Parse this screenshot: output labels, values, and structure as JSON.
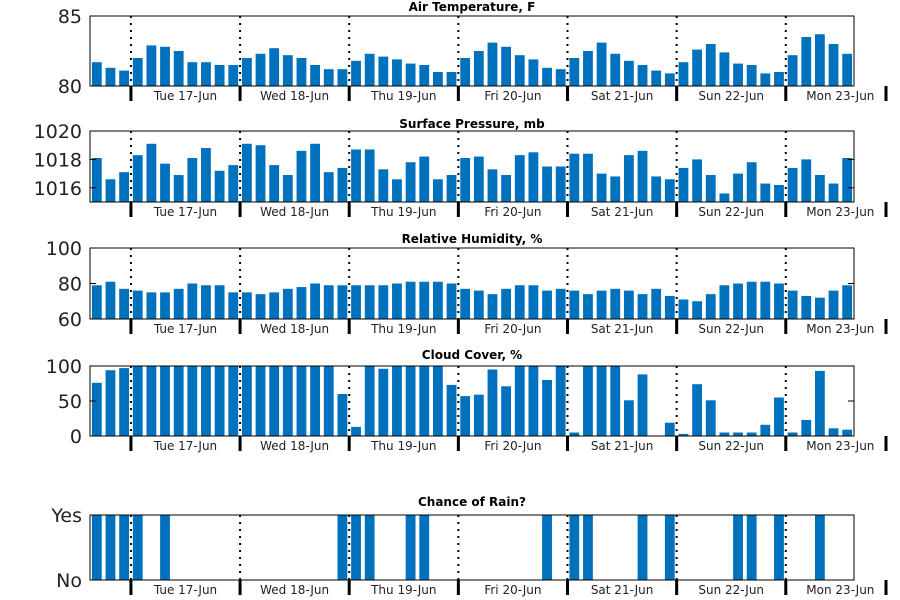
{
  "chart_data": [
    {
      "type": "bar",
      "title": "Air Temperature, F",
      "yticks": [
        "80",
        "85"
      ],
      "ylim": [
        80,
        85
      ],
      "color": "#0072BD",
      "day_labels": [
        "Tue 17-Jun",
        "Wed 18-Jun",
        "Thu 19-Jun",
        "Fri 20-Jun",
        "Sat 21-Jun",
        "Sun 22-Jun",
        "Mon 23-Jun"
      ],
      "values": [
        81.7,
        81.3,
        81.1,
        82.0,
        82.9,
        82.8,
        82.5,
        81.7,
        81.7,
        81.5,
        81.5,
        82.0,
        82.3,
        82.7,
        82.2,
        82.0,
        81.5,
        81.2,
        81.2,
        81.8,
        82.3,
        82.1,
        81.9,
        81.6,
        81.5,
        81.0,
        81.0,
        82.0,
        82.5,
        83.1,
        82.8,
        82.2,
        81.9,
        81.3,
        81.2,
        82.0,
        82.5,
        83.1,
        82.3,
        81.8,
        81.5,
        81.1,
        80.9,
        81.7,
        82.6,
        83.0,
        82.4,
        81.6,
        81.5,
        80.9,
        81.0,
        82.2,
        83.5,
        83.7,
        83.0,
        82.3
      ]
    },
    {
      "type": "bar",
      "title": "Surface Pressure, mb",
      "yticks": [
        "1016",
        "1018",
        "1020"
      ],
      "ylim": [
        1015,
        1020
      ],
      "color": "#0072BD",
      "day_labels": [
        "Tue 17-Jun",
        "Wed 18-Jun",
        "Thu 19-Jun",
        "Fri 20-Jun",
        "Sat 21-Jun",
        "Sun 22-Jun",
        "Mon 23-Jun"
      ],
      "values": [
        1018.1,
        1016.6,
        1017.1,
        1018.3,
        1019.1,
        1017.7,
        1016.9,
        1018.1,
        1018.8,
        1017.2,
        1017.6,
        1019.1,
        1019.0,
        1017.6,
        1016.9,
        1018.6,
        1019.1,
        1017.1,
        1017.4,
        1018.7,
        1018.7,
        1017.3,
        1016.6,
        1017.8,
        1018.2,
        1016.6,
        1016.9,
        1018.1,
        1018.2,
        1017.3,
        1016.9,
        1018.3,
        1018.5,
        1017.5,
        1017.5,
        1018.4,
        1018.4,
        1017.0,
        1016.8,
        1018.3,
        1018.6,
        1016.8,
        1016.6,
        1017.4,
        1018.0,
        1016.9,
        1015.6,
        1017.0,
        1017.8,
        1016.3,
        1016.2,
        1017.4,
        1018.0,
        1016.9,
        1016.3,
        1018.1
      ]
    },
    {
      "type": "bar",
      "title": "Relative Humidity, %",
      "yticks": [
        "60",
        "80",
        "100"
      ],
      "ylim": [
        60,
        100
      ],
      "color": "#0072BD",
      "day_labels": [
        "Tue 17-Jun",
        "Wed 18-Jun",
        "Thu 19-Jun",
        "Fri 20-Jun",
        "Sat 21-Jun",
        "Sun 22-Jun",
        "Mon 23-Jun"
      ],
      "values": [
        79,
        81,
        77,
        76,
        75,
        75,
        77,
        80,
        79,
        79,
        75,
        75,
        74,
        75,
        77,
        78,
        80,
        79,
        79,
        79,
        79,
        79,
        80,
        81,
        81,
        81,
        80,
        77,
        76,
        74,
        77,
        79,
        79,
        76,
        77,
        76,
        74,
        76,
        77,
        76,
        74,
        77,
        73,
        71,
        70,
        74,
        79,
        80,
        81,
        81,
        80,
        76,
        73,
        72,
        76,
        79
      ]
    },
    {
      "type": "bar",
      "title": "Cloud Cover, %",
      "yticks": [
        "0",
        "50",
        "100"
      ],
      "ylim": [
        0,
        100
      ],
      "color": "#0072BD",
      "day_labels": [
        "Tue 17-Jun",
        "Wed 18-Jun",
        "Thu 19-Jun",
        "Fri 20-Jun",
        "Sat 21-Jun",
        "Sun 22-Jun",
        "Mon 23-Jun"
      ],
      "values": [
        76,
        94,
        97,
        100,
        100,
        100,
        100,
        100,
        100,
        100,
        100,
        100,
        100,
        100,
        100,
        100,
        100,
        100,
        60,
        13,
        100,
        96,
        100,
        100,
        100,
        100,
        73,
        57,
        59,
        95,
        71,
        100,
        100,
        80,
        100,
        5,
        100,
        100,
        100,
        51,
        88,
        0,
        19,
        3,
        74,
        51,
        5,
        5,
        5,
        16,
        55,
        5,
        23,
        93,
        11,
        9
      ]
    },
    {
      "type": "bar",
      "title": "Chance of Rain?",
      "yticks": [
        "No",
        "Yes"
      ],
      "ylim": [
        0,
        1
      ],
      "color": "#0072BD",
      "day_labels": [
        "Tue 17-Jun",
        "Wed 18-Jun",
        "Thu 19-Jun",
        "Fri 20-Jun",
        "Sat 21-Jun",
        "Sun 22-Jun",
        "Mon 23-Jun"
      ],
      "values": [
        1,
        1,
        1,
        1,
        0,
        1,
        0,
        0,
        0,
        0,
        0,
        0,
        0,
        0,
        0,
        0,
        0,
        0,
        1,
        1,
        1,
        0,
        0,
        1,
        1,
        0,
        0,
        0,
        0,
        0,
        0,
        0,
        0,
        1,
        0,
        1,
        1,
        0,
        0,
        0,
        1,
        0,
        1,
        0,
        0,
        0,
        0,
        1,
        1,
        0,
        1,
        0,
        0,
        1,
        0,
        0
      ]
    }
  ]
}
